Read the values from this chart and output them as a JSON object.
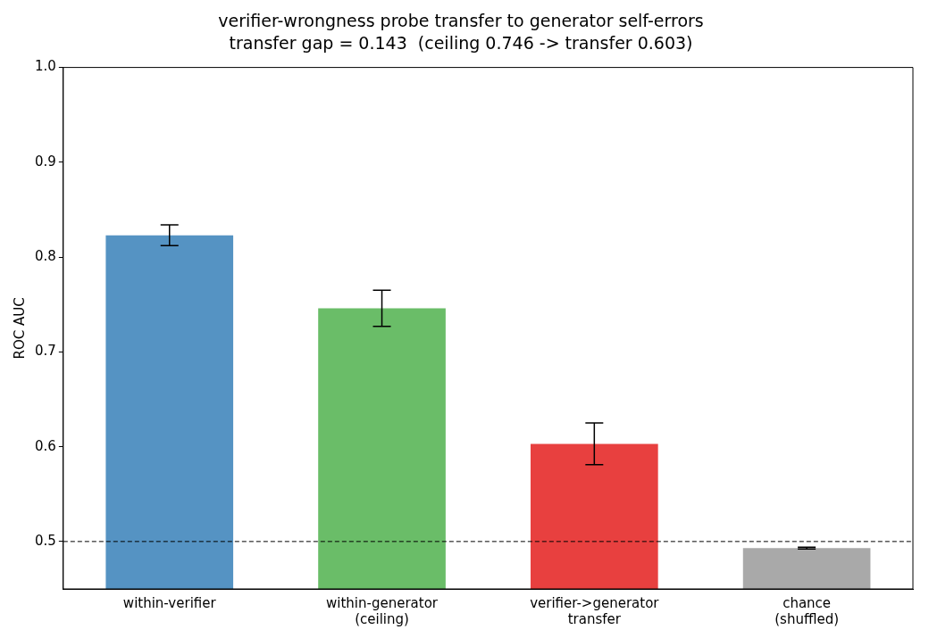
{
  "chart_data": {
    "type": "bar",
    "title": "verifier-wrongness probe transfer to generator self-errors",
    "subtitle": "transfer gap = 0.143  (ceiling 0.746 -> transfer 0.603)",
    "ylabel": "ROC AUC",
    "categories": [
      "within-verifier",
      "within-generator\n(ceiling)",
      "verifier->generator\ntransfer",
      "chance\n(shuffled)"
    ],
    "values": [
      0.823,
      0.746,
      0.603,
      0.493
    ],
    "errors": [
      0.011,
      0.019,
      0.022,
      0.001
    ],
    "colors": [
      "#5593c3",
      "#6abd68",
      "#e8403f",
      "#a9a9a9"
    ],
    "ylim": [
      0.45,
      1.0
    ],
    "yticks": [
      {
        "value": 0.5,
        "label": "0.5"
      },
      {
        "value": 0.6,
        "label": "0.6"
      },
      {
        "value": 0.7,
        "label": "0.7"
      },
      {
        "value": 0.8,
        "label": "0.8"
      },
      {
        "value": 0.9,
        "label": "0.9"
      },
      {
        "value": 1.0,
        "label": "1.0"
      }
    ],
    "grid": false,
    "legend": false,
    "ref_lines": [
      {
        "axis": "y",
        "value": 0.5,
        "color": "#000000",
        "line_style": "dashed"
      }
    ]
  }
}
